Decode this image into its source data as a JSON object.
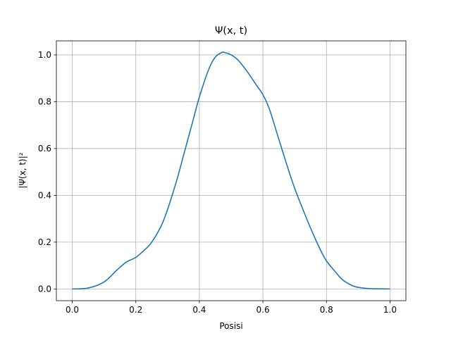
{
  "chart_data": {
    "type": "line",
    "title": "Ψ(x, t)",
    "xlabel": "Posisi",
    "ylabel": "|Ψ(x, t)|²",
    "xlim": [
      -0.05,
      1.05
    ],
    "ylim": [
      -0.05,
      1.06
    ],
    "grid": true,
    "x_ticks": [
      "0.0",
      "0.2",
      "0.4",
      "0.6",
      "0.8",
      "1.0"
    ],
    "y_ticks": [
      "0.0",
      "0.2",
      "0.4",
      "0.6",
      "0.8",
      "1.0"
    ],
    "series": [
      {
        "color": "#1f77b4",
        "x": [
          0.0,
          0.05,
          0.1,
          0.14,
          0.17,
          0.2,
          0.23,
          0.25,
          0.28,
          0.3,
          0.33,
          0.35,
          0.38,
          0.4,
          0.43,
          0.45,
          0.47,
          0.48,
          0.5,
          0.52,
          0.55,
          0.58,
          0.6,
          0.62,
          0.65,
          0.68,
          0.7,
          0.72,
          0.75,
          0.78,
          0.8,
          0.83,
          0.85,
          0.88,
          0.9,
          0.93,
          0.95,
          1.0
        ],
        "y": [
          0.0,
          0.004,
          0.03,
          0.08,
          0.115,
          0.135,
          0.17,
          0.2,
          0.27,
          0.34,
          0.47,
          0.57,
          0.72,
          0.82,
          0.94,
          0.99,
          1.01,
          1.01,
          1.0,
          0.98,
          0.93,
          0.87,
          0.83,
          0.77,
          0.64,
          0.51,
          0.43,
          0.36,
          0.26,
          0.17,
          0.12,
          0.07,
          0.04,
          0.015,
          0.007,
          0.002,
          0.001,
          0.0
        ]
      }
    ]
  }
}
